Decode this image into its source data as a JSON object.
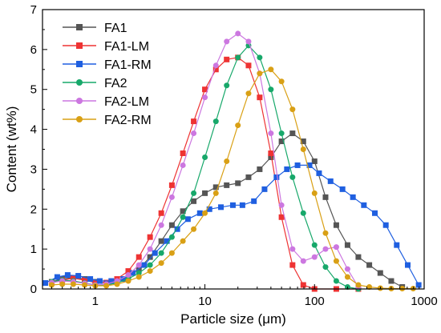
{
  "chart_data": {
    "type": "line",
    "xlabel": "Particle size (μm)",
    "ylabel": "Content (wt%)",
    "xscale": "log",
    "xlim": [
      0.33,
      1000
    ],
    "ylim": [
      0,
      7
    ],
    "xticks": [
      {
        "value": 1,
        "label": "1"
      },
      {
        "value": 10,
        "label": "10"
      },
      {
        "value": 100,
        "label": "100"
      },
      {
        "value": 1000,
        "label": "1000"
      }
    ],
    "yticks": [
      {
        "value": 0,
        "label": "0"
      },
      {
        "value": 1,
        "label": "1"
      },
      {
        "value": 2,
        "label": "2"
      },
      {
        "value": 3,
        "label": "3"
      },
      {
        "value": 4,
        "label": "4"
      },
      {
        "value": 5,
        "label": "5"
      },
      {
        "value": 6,
        "label": "6"
      },
      {
        "value": 7,
        "label": "7"
      }
    ],
    "grid": false,
    "legend_position": "top-left",
    "series": [
      {
        "name": "FA1",
        "color": "#555555",
        "marker": "square",
        "x": [
          0.4,
          0.5,
          0.63,
          0.8,
          1.0,
          1.26,
          1.58,
          2.0,
          2.5,
          3.16,
          4.0,
          5.0,
          6.3,
          7.9,
          10,
          12.6,
          15.8,
          20,
          25,
          31.6,
          40,
          50,
          63,
          79,
          100,
          126,
          158,
          200,
          251,
          316,
          398,
          501,
          631
        ],
        "y": [
          0.18,
          0.25,
          0.28,
          0.25,
          0.18,
          0.15,
          0.2,
          0.3,
          0.5,
          0.8,
          1.2,
          1.6,
          1.95,
          2.2,
          2.4,
          2.55,
          2.6,
          2.65,
          2.8,
          3.0,
          3.3,
          3.7,
          3.9,
          3.7,
          3.2,
          2.3,
          1.6,
          1.1,
          0.8,
          0.6,
          0.4,
          0.2,
          0.05
        ]
      },
      {
        "name": "FA1-LM",
        "color": "#ee3333",
        "marker": "square",
        "x": [
          0.4,
          0.5,
          0.63,
          0.8,
          1.0,
          1.26,
          1.58,
          2.0,
          2.5,
          3.16,
          4.0,
          5.0,
          6.3,
          7.9,
          10,
          12.6,
          15.8,
          20,
          25,
          31.6,
          40,
          50,
          63,
          79,
          100,
          158,
          251
        ],
        "y": [
          0.15,
          0.22,
          0.27,
          0.22,
          0.16,
          0.16,
          0.25,
          0.45,
          0.8,
          1.3,
          1.9,
          2.6,
          3.4,
          4.2,
          5.0,
          5.5,
          5.75,
          5.8,
          5.6,
          4.8,
          3.4,
          1.8,
          0.6,
          0.1,
          0.0,
          0.0,
          0.0
        ]
      },
      {
        "name": "FA1-RM",
        "color": "#1f5fe0",
        "marker": "square",
        "x": [
          0.35,
          0.45,
          0.56,
          0.7,
          0.9,
          1.1,
          1.4,
          1.8,
          2.2,
          2.8,
          3.5,
          4.5,
          5.6,
          7.0,
          9.0,
          11,
          14,
          18,
          22,
          28,
          35,
          45,
          56,
          70,
          90,
          110,
          140,
          180,
          224,
          282,
          355,
          447,
          562,
          708,
          891
        ],
        "y": [
          0.15,
          0.3,
          0.35,
          0.33,
          0.25,
          0.2,
          0.2,
          0.25,
          0.4,
          0.6,
          0.9,
          1.2,
          1.5,
          1.75,
          1.9,
          2.0,
          2.05,
          2.1,
          2.1,
          2.2,
          2.5,
          2.8,
          3.0,
          3.1,
          3.1,
          2.9,
          2.7,
          2.5,
          2.3,
          2.1,
          1.9,
          1.6,
          1.1,
          0.6,
          0.1
        ]
      },
      {
        "name": "FA2",
        "color": "#17a86a",
        "marker": "circle",
        "x": [
          0.4,
          0.5,
          0.63,
          0.8,
          1.0,
          1.26,
          1.58,
          2.0,
          2.5,
          3.16,
          4.0,
          5.0,
          6.3,
          7.9,
          10,
          12.6,
          15.8,
          20,
          25,
          31.6,
          40,
          50,
          63,
          79,
          100,
          126,
          158,
          200,
          251
        ],
        "y": [
          0.18,
          0.22,
          0.2,
          0.15,
          0.1,
          0.1,
          0.15,
          0.25,
          0.4,
          0.6,
          0.9,
          1.3,
          1.8,
          2.4,
          3.3,
          4.2,
          5.1,
          5.8,
          6.1,
          5.8,
          5.0,
          3.9,
          2.8,
          1.9,
          1.1,
          0.55,
          0.2,
          0.05,
          0.0
        ]
      },
      {
        "name": "FA2-LM",
        "color": "#cc77e0",
        "marker": "circle",
        "x": [
          0.4,
          0.5,
          0.63,
          0.8,
          1.0,
          1.26,
          1.58,
          2.0,
          2.5,
          3.16,
          4.0,
          5.0,
          6.3,
          7.9,
          10,
          12.6,
          15.8,
          20,
          25,
          31.6,
          40,
          50,
          63,
          79,
          100,
          126,
          158,
          200,
          251
        ],
        "y": [
          0.16,
          0.2,
          0.18,
          0.14,
          0.1,
          0.12,
          0.2,
          0.35,
          0.6,
          1.0,
          1.6,
          2.3,
          3.1,
          3.9,
          4.8,
          5.6,
          6.2,
          6.4,
          6.2,
          5.4,
          3.9,
          2.1,
          1.0,
          0.7,
          0.8,
          1.0,
          1.05,
          0.5,
          0.05
        ]
      },
      {
        "name": "FA2-RM",
        "color": "#d9a015",
        "marker": "circle",
        "x": [
          0.4,
          0.5,
          0.63,
          0.8,
          1.0,
          1.26,
          1.58,
          2.0,
          2.5,
          3.16,
          4.0,
          5.0,
          6.3,
          7.9,
          10,
          12.6,
          15.8,
          20,
          25,
          31.6,
          40,
          50,
          63,
          79,
          100,
          126,
          158,
          200,
          251,
          316,
          398,
          501,
          631,
          794
        ],
        "y": [
          0.1,
          0.12,
          0.12,
          0.1,
          0.08,
          0.08,
          0.12,
          0.2,
          0.3,
          0.45,
          0.65,
          0.9,
          1.2,
          1.5,
          1.9,
          2.4,
          3.2,
          4.1,
          4.9,
          5.4,
          5.5,
          5.2,
          4.5,
          3.5,
          2.4,
          1.4,
          0.7,
          0.3,
          0.1,
          0.05,
          0.02,
          0.01,
          0.01,
          0.01
        ]
      }
    ]
  }
}
